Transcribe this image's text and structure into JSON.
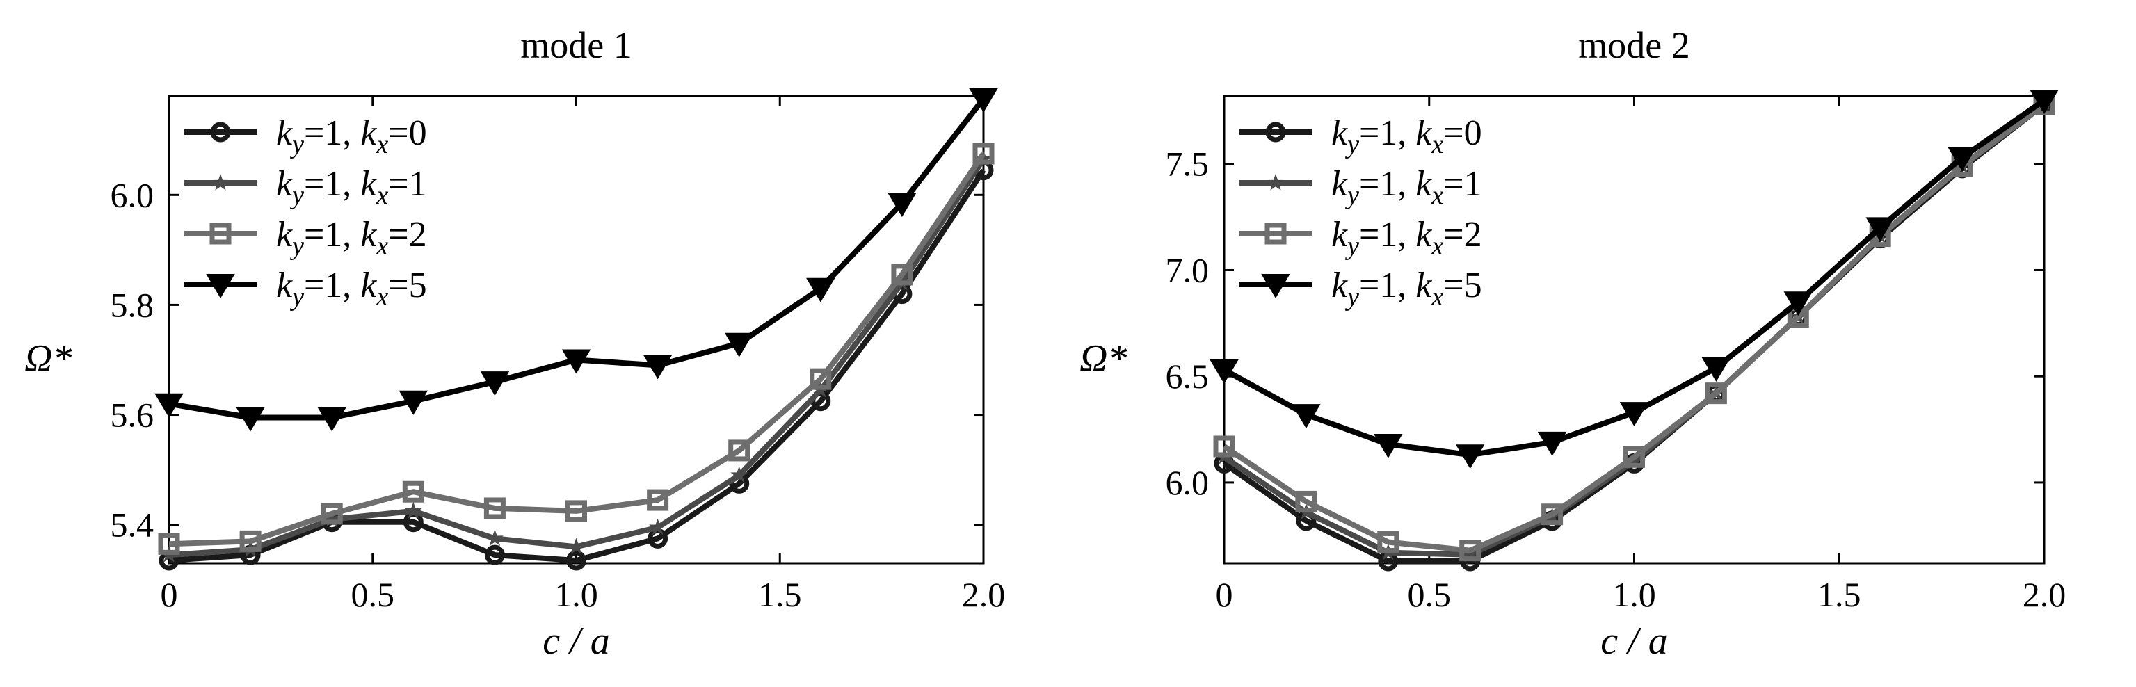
{
  "chart_data": [
    {
      "type": "line",
      "title": "mode 1",
      "xlabel": "c / a",
      "ylabel": "Ω*",
      "xlim": [
        0,
        2.0
      ],
      "ylim": [
        5.33,
        6.18
      ],
      "xticks": [
        0,
        0.5,
        1.0,
        1.5,
        2.0
      ],
      "xtick_labels": [
        "0",
        "0.5",
        "1.0",
        "1.5",
        "2.0"
      ],
      "yticks": [
        5.4,
        5.6,
        5.8,
        6.0
      ],
      "ytick_labels": [
        "5.4",
        "5.6",
        "5.8",
        "6.0"
      ],
      "grid": false,
      "legend": "top-left",
      "x": [
        0,
        0.2,
        0.4,
        0.6,
        0.8,
        1.0,
        1.2,
        1.4,
        1.6,
        1.8,
        2.0
      ],
      "series": [
        {
          "name": "k_y=1, k_x=0",
          "legend_parts": [
            "k",
            "y",
            "=1, ",
            "k",
            "x",
            "=0"
          ],
          "marker": "circle",
          "color": "#1a1a1a",
          "values": [
            5.335,
            5.345,
            5.405,
            5.405,
            5.345,
            5.335,
            5.375,
            5.475,
            5.625,
            5.82,
            6.045
          ]
        },
        {
          "name": "k_y=1, k_x=1",
          "legend_parts": [
            "k",
            "y",
            "=1, ",
            "k",
            "x",
            "=1"
          ],
          "marker": "star",
          "color": "#4a4a4a",
          "values": [
            5.345,
            5.355,
            5.41,
            5.425,
            5.375,
            5.36,
            5.395,
            5.49,
            5.645,
            5.84,
            6.065
          ]
        },
        {
          "name": "k_y=1, k_x=2",
          "legend_parts": [
            "k",
            "y",
            "=1, ",
            "k",
            "x",
            "=2"
          ],
          "marker": "square",
          "color": "#6e6e6e",
          "values": [
            5.365,
            5.37,
            5.42,
            5.46,
            5.43,
            5.425,
            5.445,
            5.535,
            5.665,
            5.855,
            6.075
          ]
        },
        {
          "name": "k_y=1, k_x=5",
          "legend_parts": [
            "k",
            "y",
            "=1, ",
            "k",
            "x",
            "=5"
          ],
          "marker": "triangle-down",
          "color": "#000000",
          "values": [
            5.62,
            5.595,
            5.595,
            5.625,
            5.66,
            5.7,
            5.69,
            5.73,
            5.83,
            5.985,
            6.175
          ]
        }
      ]
    },
    {
      "type": "line",
      "title": "mode 2",
      "xlabel": "c / a",
      "ylabel": "Ω*",
      "xlim": [
        0,
        2.0
      ],
      "ylim": [
        5.62,
        7.82
      ],
      "xticks": [
        0,
        0.5,
        1.0,
        1.5,
        2.0
      ],
      "xtick_labels": [
        "0",
        "0.5",
        "1.0",
        "1.5",
        "2.0"
      ],
      "yticks": [
        6.0,
        6.5,
        7.0,
        7.5
      ],
      "ytick_labels": [
        "6.0",
        "6.5",
        "7.0",
        "7.5"
      ],
      "grid": false,
      "legend": "top-left",
      "x": [
        0,
        0.2,
        0.4,
        0.6,
        0.8,
        1.0,
        1.2,
        1.4,
        1.6,
        1.8,
        2.0
      ],
      "series": [
        {
          "name": "k_y=1, k_x=0",
          "legend_parts": [
            "k",
            "y",
            "=1, ",
            "k",
            "x",
            "=0"
          ],
          "marker": "circle",
          "color": "#1a1a1a",
          "values": [
            6.09,
            5.82,
            5.63,
            5.63,
            5.82,
            6.09,
            6.42,
            6.78,
            7.15,
            7.48,
            7.78
          ]
        },
        {
          "name": "k_y=1, k_x=1",
          "legend_parts": [
            "k",
            "y",
            "=1, ",
            "k",
            "x",
            "=1"
          ],
          "marker": "star",
          "color": "#4a4a4a",
          "values": [
            6.12,
            5.86,
            5.67,
            5.66,
            5.84,
            6.1,
            6.42,
            6.78,
            7.16,
            7.49,
            7.79
          ]
        },
        {
          "name": "k_y=1, k_x=2",
          "legend_parts": [
            "k",
            "y",
            "=1, ",
            "k",
            "x",
            "=2"
          ],
          "marker": "square",
          "color": "#6e6e6e",
          "values": [
            6.17,
            5.91,
            5.72,
            5.68,
            5.85,
            6.12,
            6.42,
            6.78,
            7.16,
            7.49,
            7.78
          ]
        },
        {
          "name": "k_y=1, k_x=5",
          "legend_parts": [
            "k",
            "y",
            "=1, ",
            "k",
            "x",
            "=5"
          ],
          "marker": "triangle-down",
          "color": "#000000",
          "values": [
            6.53,
            6.32,
            6.18,
            6.13,
            6.19,
            6.33,
            6.54,
            6.85,
            7.2,
            7.53,
            7.8
          ]
        }
      ]
    }
  ]
}
